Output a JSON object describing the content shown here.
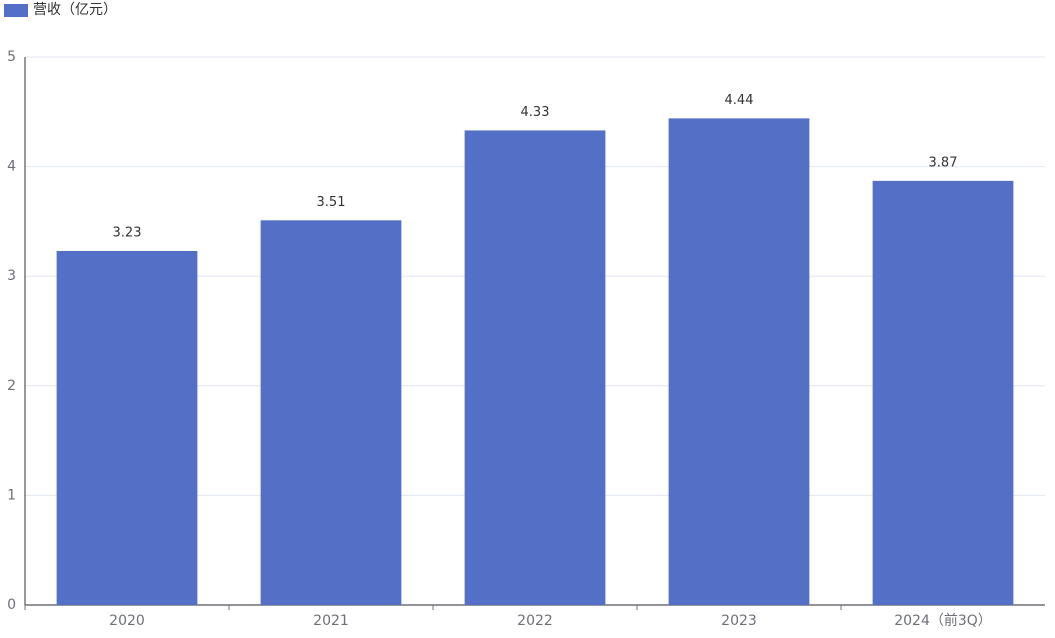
{
  "chart_data": {
    "type": "bar",
    "categories": [
      "2020",
      "2021",
      "2022",
      "2023",
      "2024（前3Q）"
    ],
    "series": [
      {
        "name": "营收（亿元）",
        "color": "#5470c6",
        "values": [
          3.23,
          3.51,
          4.33,
          4.44,
          3.87
        ]
      }
    ],
    "ylim": [
      0,
      5
    ],
    "yticks": [
      0,
      1,
      2,
      3,
      4,
      5
    ],
    "grid": true,
    "legend": "top-left"
  }
}
